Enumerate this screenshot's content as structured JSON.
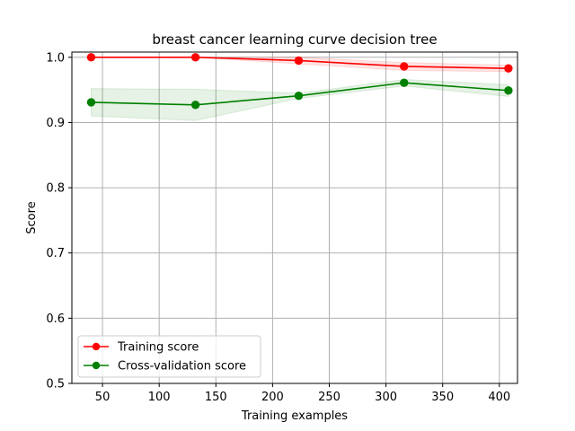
{
  "chart_data": {
    "type": "line",
    "title": "breast cancer learning curve decision tree",
    "xlabel": "Training examples",
    "ylabel": "Score",
    "xlim": [
      23,
      416
    ],
    "ylim": [
      0.5,
      1.008
    ],
    "xticks": [
      50,
      100,
      150,
      200,
      250,
      300,
      350,
      400
    ],
    "xtick_labels": [
      "50",
      "100",
      "150",
      "200",
      "250",
      "300",
      "350",
      "400"
    ],
    "yticks": [
      0.5,
      0.6,
      0.7,
      0.8,
      0.9,
      1.0
    ],
    "ytick_labels": [
      "0.5",
      "0.6",
      "0.7",
      "0.8",
      "0.9",
      "1.0"
    ],
    "grid": true,
    "legend_position": "lower-left",
    "x": [
      40,
      132,
      223,
      316,
      408
    ],
    "series": [
      {
        "name": "Training score",
        "color": "#ff0000",
        "fill_color": "#ff0000",
        "values": [
          1.0,
          1.0,
          0.995,
          0.986,
          0.983
        ],
        "band_upper": [
          1.0,
          1.0,
          1.0,
          0.992,
          0.988
        ],
        "band_lower": [
          1.0,
          1.0,
          0.99,
          0.98,
          0.978
        ]
      },
      {
        "name": "Cross-validation score",
        "color": "#008000",
        "fill_color": "#008000",
        "values": [
          0.931,
          0.927,
          0.941,
          0.961,
          0.949
        ],
        "band_upper": [
          0.952,
          0.951,
          0.945,
          0.966,
          0.958
        ],
        "band_lower": [
          0.91,
          0.903,
          0.937,
          0.956,
          0.94
        ]
      }
    ]
  }
}
